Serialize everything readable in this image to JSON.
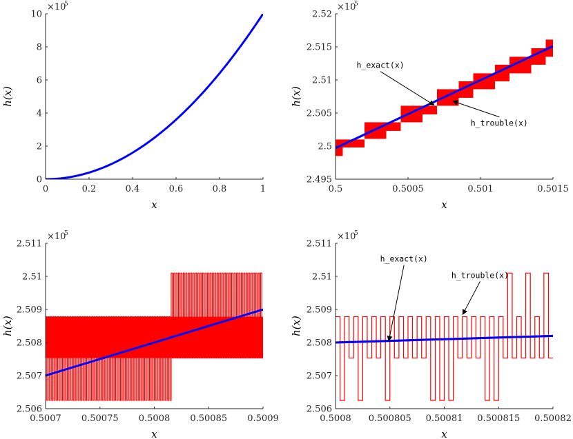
{
  "colors": {
    "exact": "#0000ff",
    "trouble": "#ff0000",
    "axis": "#262626"
  },
  "chart_data": [
    {
      "type": "line",
      "xlabel": "x",
      "ylabel": "h(x)",
      "xlim": [
        0,
        1
      ],
      "ylim": [
        0,
        10
      ],
      "multiplier": "×10",
      "multiplier_exp": "5",
      "xticks": [
        0,
        0.2,
        0.4,
        0.6,
        0.8,
        1
      ],
      "xtick_labels": [
        "0",
        "0.2",
        "0.4",
        "0.6",
        "0.8",
        "1"
      ],
      "yticks": [
        0,
        2,
        4,
        6,
        8,
        10
      ],
      "ytick_labels": [
        "0",
        "2",
        "4",
        "6",
        "8",
        "10"
      ],
      "series": [
        {
          "name": "h_exact(x)",
          "color": "#0000ff",
          "style": "line",
          "x": [
            0,
            0.1,
            0.2,
            0.3,
            0.4,
            0.5,
            0.6,
            0.7,
            0.8,
            0.9,
            1.0
          ],
          "y": [
            0,
            0.1,
            0.4,
            0.9,
            1.6,
            2.5,
            3.6,
            4.9,
            6.4,
            8.1,
            10.0
          ]
        }
      ],
      "annotations": []
    },
    {
      "type": "line",
      "xlabel": "x",
      "ylabel": "h(x)",
      "xlim": [
        0.5,
        0.5015
      ],
      "ylim": [
        2.495,
        2.52
      ],
      "multiplier": "×10",
      "multiplier_exp": "5",
      "xticks": [
        0.5,
        0.5005,
        0.501,
        0.5015
      ],
      "xtick_labels": [
        "0.5",
        "0.5005",
        "0.501",
        "0.5015"
      ],
      "yticks": [
        2.495,
        2.5,
        2.505,
        2.51,
        2.515,
        2.52
      ],
      "ytick_labels": [
        "2.495",
        "2.5",
        "2.505",
        "2.51",
        "2.515",
        "2.52"
      ],
      "series": [
        {
          "name": "h_exact(x)",
          "color": "#0000ff",
          "style": "line",
          "x": [
            0.5,
            0.5015
          ],
          "y": [
            2.4997,
            2.5151
          ]
        },
        {
          "name": "h_trouble(x)",
          "color": "#ff0000",
          "style": "band",
          "bands": [
            [
              0.5,
              0.50005,
              2.4985,
              2.501
            ],
            [
              0.50005,
              0.5002,
              2.4998,
              2.501
            ],
            [
              0.5002,
              0.50035,
              2.5011,
              2.5036
            ],
            [
              0.50035,
              0.50045,
              2.5023,
              2.5036
            ],
            [
              0.50045,
              0.5006,
              2.5036,
              2.5061
            ],
            [
              0.5006,
              0.5007,
              2.5048,
              2.5061
            ],
            [
              0.5007,
              0.50085,
              2.5061,
              2.5086
            ],
            [
              0.50085,
              0.50095,
              2.5073,
              2.5098
            ],
            [
              0.50095,
              0.5011,
              2.5086,
              2.511
            ],
            [
              0.5011,
              0.5012,
              2.5098,
              2.5123
            ],
            [
              0.5012,
              0.50135,
              2.511,
              2.5135
            ],
            [
              0.50135,
              0.50145,
              2.5123,
              2.5148
            ],
            [
              0.50145,
              0.5015,
              2.5135,
              2.5161
            ]
          ]
        }
      ],
      "annotations": [
        {
          "text": "h_exact(x)",
          "tx": 0.50031,
          "ty": 2.5118,
          "ax": 0.50068,
          "ay": 2.5062
        },
        {
          "text": "h_trouble(x)",
          "tx": 0.50113,
          "ty": 2.50305,
          "ax": 0.50081,
          "ay": 2.5068
        }
      ]
    },
    {
      "type": "line",
      "xlabel": "x",
      "ylabel": "h(x)",
      "xlim": [
        0.5007,
        0.5009
      ],
      "ylim": [
        2.506,
        2.511
      ],
      "multiplier": "×10",
      "multiplier_exp": "5",
      "xticks": [
        0.5007,
        0.50075,
        0.5008,
        0.50085,
        0.5009
      ],
      "xtick_labels": [
        "0.5007",
        "0.50075",
        "0.5008",
        "0.50085",
        "0.5009"
      ],
      "yticks": [
        2.506,
        2.507,
        2.508,
        2.509,
        2.51,
        2.511
      ],
      "ytick_labels": [
        "2.506",
        "2.507",
        "2.508",
        "2.509",
        "2.51",
        "2.511"
      ],
      "series": [
        {
          "name": "h_exact(x)",
          "color": "#0000ff",
          "style": "line",
          "x": [
            0.5007,
            0.5009
          ],
          "y": [
            2.507,
            2.509
          ]
        },
        {
          "name": "h_trouble(x)",
          "color": "#ff0000",
          "style": "oscillation",
          "levels": [
            2.50625,
            2.50753,
            2.50878,
            2.5101
          ],
          "switch_x": 0.500815,
          "cycles": 90
        }
      ],
      "annotations": []
    },
    {
      "type": "line",
      "xlabel": "x",
      "ylabel": "h(x)",
      "xlim": [
        0.5008,
        0.50082
      ],
      "ylim": [
        2.506,
        2.511
      ],
      "multiplier": "×10",
      "multiplier_exp": "5",
      "xticks": [
        0.5008,
        0.500805,
        0.50081,
        0.500815,
        0.50082
      ],
      "xtick_labels": [
        "0.5008",
        "0.500805",
        "0.50081",
        "0.500815",
        "0.50082"
      ],
      "yticks": [
        2.506,
        2.507,
        2.508,
        2.509,
        2.51,
        2.511
      ],
      "ytick_labels": [
        "2.506",
        "2.507",
        "2.508",
        "2.509",
        "2.51",
        "2.511"
      ],
      "series": [
        {
          "name": "h_exact(x)",
          "color": "#0000ff",
          "style": "line",
          "x": [
            0.5008,
            0.50082
          ],
          "y": [
            2.508,
            2.5082
          ]
        },
        {
          "name": "h_trouble(x)",
          "color": "#ff0000",
          "style": "oscillation",
          "levels": [
            2.50625,
            2.50753,
            2.50878,
            2.5101
          ],
          "switch_x": 0.500815,
          "cycles": 24,
          "low_dips": [
            0.50080025,
            0.50080225,
            0.50080475,
            0.5008085,
            0.500809,
            0.50081,
            0.5008135,
            0.5008145
          ],
          "high_spikes": [
            0.5008165,
            0.5008178,
            0.5008195
          ]
        }
      ],
      "annotations": [
        {
          "text": "h_exact(x)",
          "tx": 0.5008063,
          "ty": 2.51045,
          "ax": 0.5008049,
          "ay": 2.50805
        },
        {
          "text": "h_trouble(x)",
          "tx": 0.5008133,
          "ty": 2.50995,
          "ax": 0.5008117,
          "ay": 2.50885
        }
      ]
    }
  ]
}
